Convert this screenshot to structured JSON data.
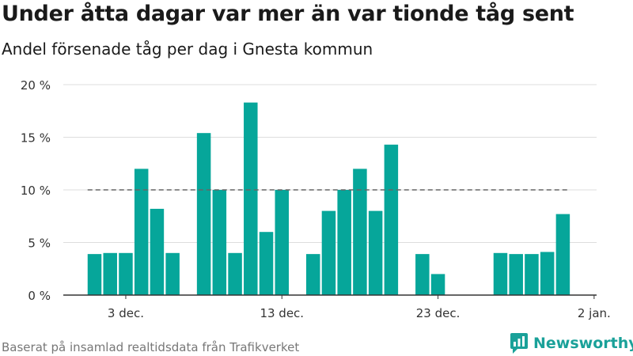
{
  "title": "Under åtta dagar var mer än var tionde tåg sent",
  "subtitle": "Andel försenade tåg per dag i Gnesta kommun",
  "source": "Baserat på insamlad realtidsdata från Trafikverket",
  "brand": {
    "name": "Newsworthy",
    "icon": "newsworthy-logo-icon",
    "color": "#1aa199"
  },
  "colors": {
    "bar": "#06a69a",
    "reference_line": "#666666",
    "grid": "#dddddd",
    "axis": "#333333"
  },
  "chart_data": {
    "type": "bar",
    "x": [
      "2021-12-01",
      "2021-12-02",
      "2021-12-03",
      "2021-12-04",
      "2021-12-05",
      "2021-12-06",
      "2021-12-07",
      "2021-12-08",
      "2021-12-09",
      "2021-12-10",
      "2021-12-11",
      "2021-12-12",
      "2021-12-13",
      "2021-12-14",
      "2021-12-15",
      "2021-12-16",
      "2021-12-17",
      "2021-12-18",
      "2021-12-19",
      "2021-12-20",
      "2021-12-21",
      "2021-12-22",
      "2021-12-23",
      "2021-12-24",
      "2021-12-25",
      "2021-12-26",
      "2021-12-27",
      "2021-12-28",
      "2021-12-29",
      "2021-12-30",
      "2021-12-31"
    ],
    "values": [
      3.9,
      4.0,
      4.0,
      12.0,
      8.2,
      4.0,
      null,
      15.4,
      10.0,
      4.0,
      18.3,
      6.0,
      10.0,
      null,
      3.9,
      8.0,
      10.0,
      12.0,
      8.0,
      14.3,
      null,
      3.9,
      2.0,
      null,
      null,
      null,
      4.0,
      3.9,
      3.9,
      4.1,
      7.7
    ],
    "reference_value": 10,
    "reference_style": "dashed",
    "ylim": [
      0,
      20
    ],
    "yticks": [
      0,
      5,
      10,
      15,
      20
    ],
    "ytick_labels": [
      "0 %",
      "5 %",
      "10 %",
      "15 %",
      "20 %"
    ],
    "xticks": [
      "2021-12-03",
      "2021-12-13",
      "2021-12-23",
      "2022-01-02"
    ],
    "xtick_labels": [
      "3 dec.",
      "13 dec.",
      "23 dec.",
      "2 jan."
    ],
    "xlabel": "",
    "ylabel": "",
    "grid": true
  }
}
